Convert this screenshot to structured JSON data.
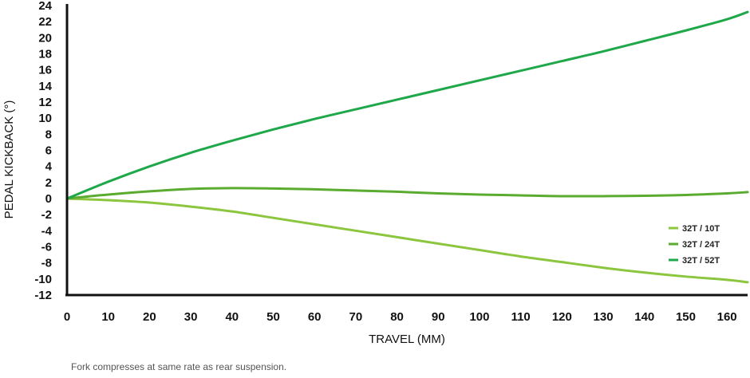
{
  "chart_data": {
    "type": "line",
    "xlabel": "TRAVEL (MM)",
    "ylabel": "PEDAL KICKBACK (°)",
    "xlim": [
      0,
      165
    ],
    "ylim": [
      -12,
      24
    ],
    "xticks": [
      0,
      10,
      20,
      30,
      40,
      50,
      60,
      70,
      80,
      90,
      100,
      110,
      120,
      130,
      140,
      150,
      160
    ],
    "yticks": [
      -12,
      -10,
      -8,
      -6,
      -4,
      -2,
      0,
      2,
      4,
      6,
      8,
      10,
      12,
      14,
      16,
      18,
      20,
      22,
      24
    ],
    "grid": false,
    "legend_position": "bottom-right",
    "x": [
      0,
      10,
      20,
      30,
      40,
      50,
      60,
      70,
      80,
      90,
      100,
      110,
      120,
      130,
      140,
      150,
      160,
      165
    ],
    "series": [
      {
        "name": "32T / 10T",
        "color": "#8cc63f",
        "values": [
          0,
          -0.2,
          -0.5,
          -1.0,
          -1.6,
          -2.4,
          -3.2,
          -4.0,
          -4.8,
          -5.6,
          -6.4,
          -7.2,
          -7.9,
          -8.6,
          -9.2,
          -9.7,
          -10.1,
          -10.4
        ]
      },
      {
        "name": "32T / 24T",
        "color": "#5aab30",
        "values": [
          0,
          0.5,
          0.9,
          1.2,
          1.3,
          1.25,
          1.15,
          1.0,
          0.85,
          0.65,
          0.5,
          0.4,
          0.3,
          0.3,
          0.35,
          0.45,
          0.65,
          0.8
        ]
      },
      {
        "name": "32T / 52T",
        "color": "#1fa84a",
        "values": [
          0,
          2.1,
          4.0,
          5.7,
          7.2,
          8.6,
          9.9,
          11.1,
          12.3,
          13.5,
          14.7,
          15.9,
          17.1,
          18.3,
          19.6,
          20.9,
          22.3,
          23.2
        ]
      }
    ]
  },
  "footnote": "Fork compresses at same rate as rear suspension."
}
